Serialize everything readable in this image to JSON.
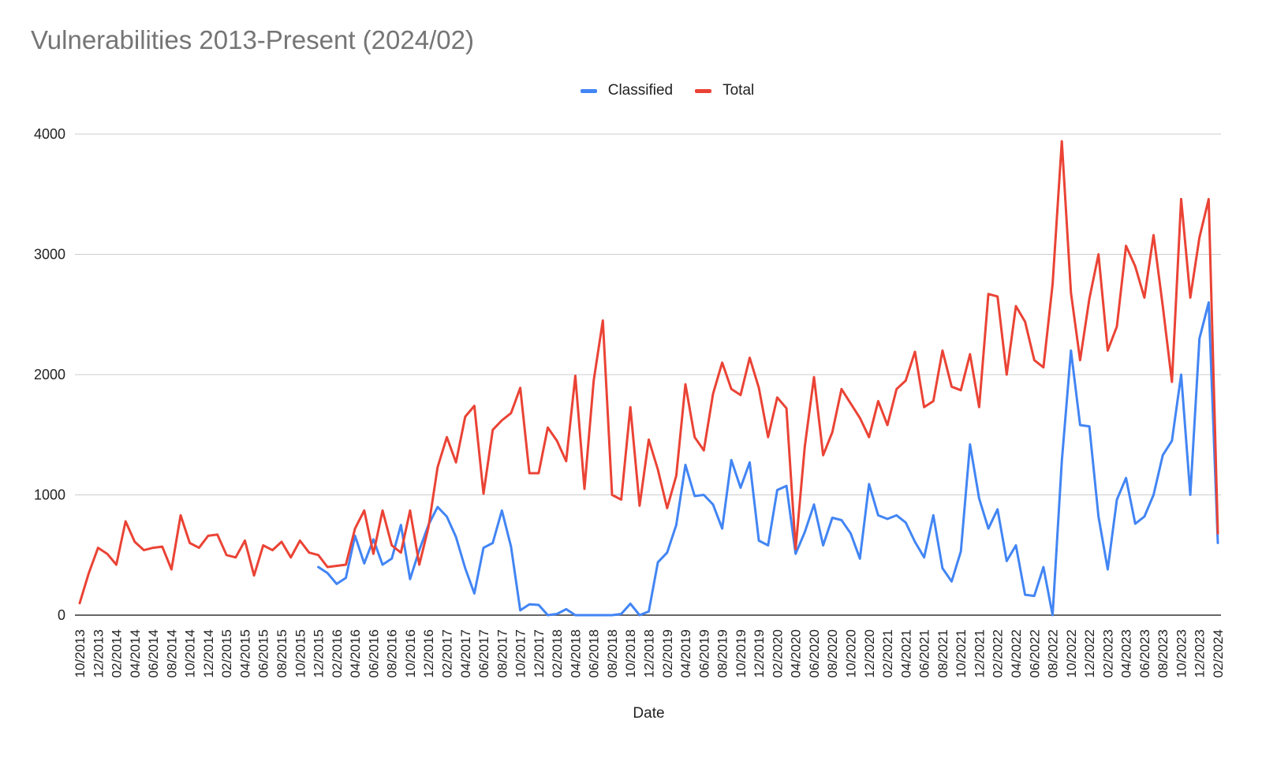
{
  "chart_data": {
    "type": "line",
    "title": "Vulnerabilities 2013-Present (2024/02)",
    "xlabel": "Date",
    "ylabel": "",
    "ylim": [
      0,
      4000
    ],
    "yticks": [
      "0",
      "1000",
      "2000",
      "3000",
      "4000"
    ],
    "grid": true,
    "legend_position": "top-center",
    "x": [
      "10/2013",
      "11/2013",
      "12/2013",
      "01/2014",
      "02/2014",
      "03/2014",
      "04/2014",
      "05/2014",
      "06/2014",
      "07/2014",
      "08/2014",
      "09/2014",
      "10/2014",
      "11/2014",
      "12/2014",
      "01/2015",
      "02/2015",
      "03/2015",
      "04/2015",
      "05/2015",
      "06/2015",
      "07/2015",
      "08/2015",
      "09/2015",
      "10/2015",
      "11/2015",
      "12/2015",
      "01/2016",
      "02/2016",
      "03/2016",
      "04/2016",
      "05/2016",
      "06/2016",
      "07/2016",
      "08/2016",
      "09/2016",
      "10/2016",
      "11/2016",
      "12/2016",
      "01/2017",
      "02/2017",
      "03/2017",
      "04/2017",
      "05/2017",
      "06/2017",
      "07/2017",
      "08/2017",
      "09/2017",
      "10/2017",
      "11/2017",
      "12/2017",
      "01/2018",
      "02/2018",
      "03/2018",
      "04/2018",
      "05/2018",
      "06/2018",
      "07/2018",
      "08/2018",
      "09/2018",
      "10/2018",
      "11/2018",
      "12/2018",
      "01/2019",
      "02/2019",
      "03/2019",
      "04/2019",
      "05/2019",
      "06/2019",
      "07/2019",
      "08/2019",
      "09/2019",
      "10/2019",
      "11/2019",
      "12/2019",
      "01/2020",
      "02/2020",
      "03/2020",
      "04/2020",
      "05/2020",
      "06/2020",
      "07/2020",
      "08/2020",
      "09/2020",
      "10/2020",
      "11/2020",
      "12/2020",
      "01/2021",
      "02/2021",
      "03/2021",
      "04/2021",
      "05/2021",
      "06/2021",
      "07/2021",
      "08/2021",
      "09/2021",
      "10/2021",
      "11/2021",
      "12/2021",
      "01/2022",
      "02/2022",
      "03/2022",
      "04/2022",
      "05/2022",
      "06/2022",
      "07/2022",
      "08/2022",
      "09/2022",
      "10/2022",
      "11/2022",
      "12/2022",
      "01/2023",
      "02/2023",
      "03/2023",
      "04/2023",
      "05/2023",
      "06/2023",
      "07/2023",
      "08/2023",
      "09/2023",
      "10/2023",
      "11/2023",
      "12/2023",
      "01/2024",
      "02/2024"
    ],
    "xtick_labels": [
      "10/2013",
      "12/2013",
      "02/2014",
      "04/2014",
      "06/2014",
      "08/2014",
      "10/2014",
      "12/2014",
      "02/2015",
      "04/2015",
      "06/2015",
      "08/2015",
      "10/2015",
      "12/2015",
      "02/2016",
      "04/2016",
      "06/2016",
      "08/2016",
      "10/2016",
      "12/2016",
      "02/2017",
      "04/2017",
      "06/2017",
      "08/2017",
      "10/2017",
      "12/2017",
      "02/2018",
      "04/2018",
      "06/2018",
      "08/2018",
      "10/2018",
      "12/2018",
      "02/2019",
      "04/2019",
      "06/2019",
      "08/2019",
      "10/2019",
      "12/2019",
      "02/2020",
      "04/2020",
      "06/2020",
      "08/2020",
      "10/2020",
      "12/2020",
      "02/2021",
      "04/2021",
      "06/2021",
      "08/2021",
      "10/2021",
      "12/2021",
      "02/2022",
      "04/2022",
      "06/2022",
      "08/2022",
      "10/2022",
      "12/2022",
      "02/2023",
      "04/2023",
      "06/2023",
      "08/2023",
      "10/2023",
      "12/2023",
      "02/2024"
    ],
    "series": [
      {
        "name": "Classified",
        "color": "#4285f4",
        "values": [
          null,
          null,
          null,
          null,
          null,
          null,
          null,
          null,
          null,
          null,
          null,
          null,
          null,
          null,
          null,
          null,
          null,
          null,
          null,
          null,
          null,
          null,
          null,
          null,
          null,
          null,
          400,
          350,
          260,
          310,
          660,
          430,
          630,
          420,
          470,
          750,
          300,
          540,
          750,
          900,
          820,
          650,
          390,
          180,
          560,
          600,
          870,
          570,
          40,
          90,
          85,
          0,
          10,
          50,
          0,
          0,
          0,
          0,
          0,
          10,
          95,
          0,
          30,
          440,
          520,
          750,
          1250,
          990,
          1000,
          920,
          720,
          1290,
          1060,
          1270,
          620,
          580,
          1040,
          1075,
          510,
          690,
          920,
          580,
          810,
          790,
          680,
          470,
          1090,
          830,
          800,
          830,
          770,
          610,
          480,
          830,
          390,
          280,
          530,
          1420,
          970,
          720,
          880,
          450,
          580,
          170,
          160,
          400,
          0,
          1280,
          2200,
          1580,
          1570,
          820,
          380,
          960,
          1140,
          760,
          820,
          1000,
          1330,
          1450,
          2000,
          1000,
          2300,
          2600,
          600
        ]
      },
      {
        "name": "Total",
        "color": "#ea4335",
        "values": [
          100,
          350,
          560,
          510,
          420,
          780,
          610,
          540,
          560,
          570,
          380,
          830,
          600,
          560,
          660,
          670,
          500,
          480,
          620,
          330,
          580,
          540,
          610,
          480,
          620,
          520,
          500,
          400,
          410,
          420,
          720,
          870,
          510,
          870,
          580,
          520,
          870,
          420,
          730,
          1230,
          1480,
          1270,
          1650,
          1740,
          1010,
          1540,
          1620,
          1680,
          1890,
          1180,
          1180,
          1560,
          1450,
          1280,
          1990,
          1050,
          1950,
          2450,
          1000,
          960,
          1730,
          910,
          1460,
          1210,
          890,
          1160,
          1920,
          1480,
          1370,
          1840,
          2100,
          1880,
          1830,
          2140,
          1890,
          1480,
          1810,
          1720,
          550,
          1400,
          1980,
          1330,
          1520,
          1880,
          1760,
          1640,
          1480,
          1780,
          1580,
          1880,
          1950,
          2190,
          1730,
          1780,
          2200,
          1900,
          1870,
          2170,
          1730,
          2670,
          2650,
          2000,
          2570,
          2440,
          2120,
          2060,
          2750,
          3940,
          2680,
          2120,
          2630,
          3000,
          2200,
          2400,
          3070,
          2900,
          2640,
          3160,
          2570,
          1940,
          3460,
          2640,
          3140,
          3460,
          680
        ]
      }
    ]
  }
}
